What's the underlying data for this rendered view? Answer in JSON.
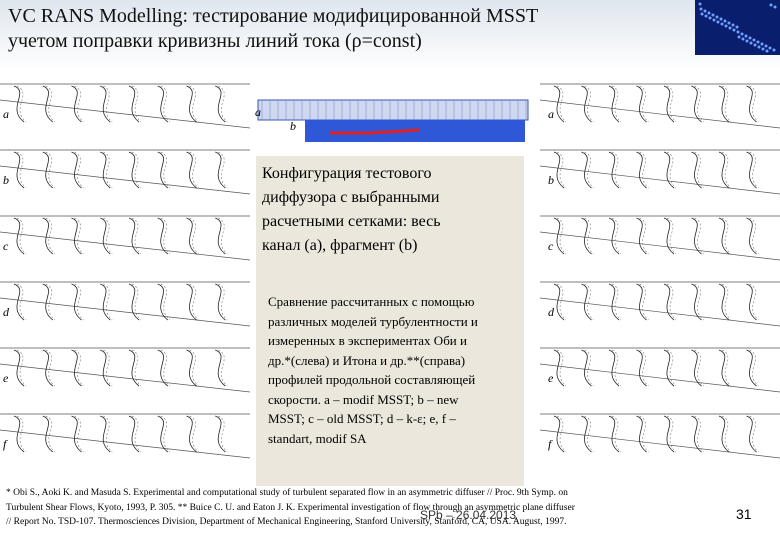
{
  "header": {
    "title_lines": [
      "VC RANS Modelling: тестирование модифицированной MSST",
      "учетом поправки кривизны линий тока (ρ=const)"
    ]
  },
  "mesh_labels": [
    "a",
    "b"
  ],
  "caption_lines": [
    "Конфигурация тестового",
    "диффузора с выбранными",
    "расчетными сетками: весь",
    "канал (a), фрагмент (b)"
  ],
  "comparison_lines": [
    "Сравнение рассчитанных с помощью",
    "различных моделей турбулентности и",
    "измеренных в экспериментах Оби и",
    "др.*(слева) и Итона и др.**(справа)",
    "профилей продольной составляющей",
    "скорости. a – modif MSST; b – new",
    "MSST; c – old MSST; d – k-ε; e, f –",
    "standart, modif SA"
  ],
  "left_panel_labels": [
    "a",
    "b",
    "c",
    "d",
    "e",
    "f"
  ],
  "right_panel_labels": [
    "a",
    "b",
    "c",
    "d",
    "e",
    "f"
  ],
  "footnote_lines": [
    "* Obi S., Aoki K. and Masuda S. Experimental and computational study of turbulent separated flow in an asymmetric diffuser // Proc. 9th Symp. on",
    "Turbulent Shear Flows, Kyoto, 1993, P. 305. ** Buice C. U. and Eaton J. K. Experimental investigation of flow through an asymmetric plane diffuser",
    "// Report No. TSD-107. Thermosciences Division, Department of Mechanical Engineering, Stanford University, Stanford, CA, USA. August, 1997."
  ],
  "footer": "SPb – 26.04.2013",
  "page_number": "31"
}
